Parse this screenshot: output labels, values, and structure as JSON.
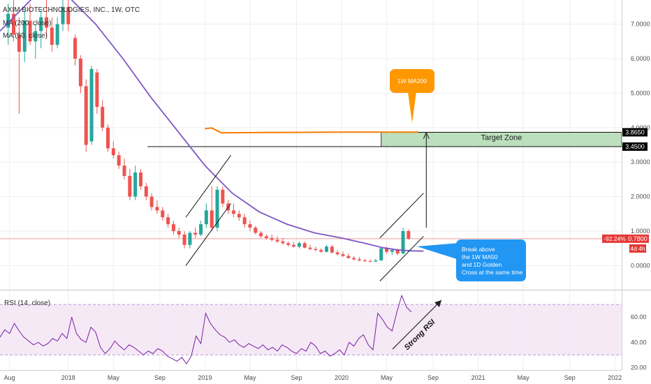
{
  "chart_data": {
    "type": "candlestick",
    "header": {
      "symbol_line": "AXIM BIOTECHNOLOGIES, INC., 1W, OTC",
      "ma200_label": "MA (200, close)",
      "ma50_label": "MA (50, close)"
    },
    "price_axis": {
      "ticks": [
        0.0,
        1.0,
        2.0,
        3.0,
        4.0,
        5.0,
        6.0,
        7.0
      ],
      "tick_labels": [
        "0.0000",
        "1.0000",
        "2.0000",
        "3.0000",
        "4.0000",
        "5.0000",
        "6.0000",
        "7.0000"
      ],
      "ylim": [
        -0.7,
        7.7
      ]
    },
    "time_axis": {
      "labels": [
        "Aug",
        "2018",
        "May",
        "Sep",
        "2019",
        "May",
        "Sep",
        "2020",
        "May",
        "Sep",
        "2021",
        "May",
        "Sep",
        "2022"
      ],
      "xlim": [
        2017.5,
        2022.05
      ]
    },
    "markers": {
      "last_price": {
        "label": "0.7800",
        "value": 0.78,
        "pct_label": "-92.24%",
        "countdown": "4d 4h"
      },
      "target_top": {
        "label": "3.8650",
        "value": 3.865
      },
      "target_bottom": {
        "label": "3.4500",
        "value": 3.45
      }
    },
    "target_zone": {
      "label": "Target Zone",
      "low": 3.45,
      "high": 3.865,
      "x_start": 2020.29,
      "x_end": 2022.05
    },
    "ma200_line": {
      "label": "1W MA200",
      "x": [
        2019.0,
        2019.05,
        2019.12,
        2019.5,
        2020.0,
        2020.5,
        2020.56
      ],
      "y": [
        3.97,
        3.99,
        3.85,
        3.86,
        3.87,
        3.87,
        3.87
      ]
    },
    "ma50_line": {
      "x": [
        2017.5,
        2017.8,
        2018.0,
        2018.2,
        2018.4,
        2018.6,
        2018.8,
        2019.0,
        2019.2,
        2019.4,
        2019.6,
        2019.8,
        2020.0,
        2020.2,
        2020.3,
        2020.4,
        2020.5,
        2020.6
      ],
      "y": [
        6.8,
        8.0,
        7.8,
        7.0,
        6.0,
        4.9,
        3.9,
        2.9,
        2.1,
        1.55,
        1.2,
        0.95,
        0.8,
        0.62,
        0.52,
        0.46,
        0.43,
        0.42
      ]
    },
    "candles": [
      {
        "x": 2017.56,
        "o": 6.9,
        "h": 7.6,
        "l": 6.4,
        "c": 7.3
      },
      {
        "x": 2017.6,
        "o": 7.3,
        "h": 7.8,
        "l": 6.5,
        "c": 6.7
      },
      {
        "x": 2017.64,
        "o": 6.7,
        "h": 7.2,
        "l": 4.4,
        "c": 6.2
      },
      {
        "x": 2017.68,
        "o": 6.2,
        "h": 7.4,
        "l": 5.9,
        "c": 7.1
      },
      {
        "x": 2017.72,
        "o": 7.1,
        "h": 7.6,
        "l": 6.4,
        "c": 6.5
      },
      {
        "x": 2017.76,
        "o": 6.5,
        "h": 7.0,
        "l": 6.0,
        "c": 6.8
      },
      {
        "x": 2017.8,
        "o": 6.8,
        "h": 7.4,
        "l": 6.3,
        "c": 7.2
      },
      {
        "x": 2017.84,
        "o": 7.2,
        "h": 7.7,
        "l": 6.6,
        "c": 6.9
      },
      {
        "x": 2017.88,
        "o": 6.9,
        "h": 7.2,
        "l": 6.2,
        "c": 6.4
      },
      {
        "x": 2017.92,
        "o": 6.4,
        "h": 7.2,
        "l": 6.3,
        "c": 7.0
      },
      {
        "x": 2017.96,
        "o": 7.0,
        "h": 7.7,
        "l": 6.8,
        "c": 7.5
      },
      {
        "x": 2018.0,
        "o": 7.5,
        "h": 7.8,
        "l": 6.8,
        "c": 7.0
      },
      {
        "x": 2018.05,
        "o": 6.6,
        "h": 6.7,
        "l": 5.8,
        "c": 6.0
      },
      {
        "x": 2018.09,
        "o": 6.0,
        "h": 6.1,
        "l": 5.0,
        "c": 5.2
      },
      {
        "x": 2018.13,
        "o": 5.2,
        "h": 5.4,
        "l": 3.3,
        "c": 3.5
      },
      {
        "x": 2018.17,
        "o": 3.6,
        "h": 5.8,
        "l": 3.5,
        "c": 5.7
      },
      {
        "x": 2018.21,
        "o": 5.6,
        "h": 5.7,
        "l": 4.4,
        "c": 4.6
      },
      {
        "x": 2018.25,
        "o": 4.6,
        "h": 4.8,
        "l": 3.9,
        "c": 4.0
      },
      {
        "x": 2018.29,
        "o": 4.0,
        "h": 4.1,
        "l": 3.3,
        "c": 3.4
      },
      {
        "x": 2018.33,
        "o": 3.4,
        "h": 3.6,
        "l": 3.1,
        "c": 3.2
      },
      {
        "x": 2018.37,
        "o": 3.2,
        "h": 3.3,
        "l": 2.8,
        "c": 2.9
      },
      {
        "x": 2018.41,
        "o": 2.9,
        "h": 3.1,
        "l": 2.5,
        "c": 2.6
      },
      {
        "x": 2018.45,
        "o": 2.6,
        "h": 2.8,
        "l": 1.9,
        "c": 2.0
      },
      {
        "x": 2018.49,
        "o": 2.0,
        "h": 2.9,
        "l": 1.9,
        "c": 2.7
      },
      {
        "x": 2018.53,
        "o": 2.7,
        "h": 2.8,
        "l": 2.2,
        "c": 2.3
      },
      {
        "x": 2018.57,
        "o": 2.3,
        "h": 2.4,
        "l": 1.9,
        "c": 2.0
      },
      {
        "x": 2018.61,
        "o": 2.0,
        "h": 2.1,
        "l": 1.6,
        "c": 1.7
      },
      {
        "x": 2018.65,
        "o": 1.7,
        "h": 1.9,
        "l": 1.5,
        "c": 1.6
      },
      {
        "x": 2018.69,
        "o": 1.6,
        "h": 1.7,
        "l": 1.3,
        "c": 1.4
      },
      {
        "x": 2018.73,
        "o": 1.4,
        "h": 1.5,
        "l": 1.1,
        "c": 1.2
      },
      {
        "x": 2018.77,
        "o": 1.2,
        "h": 1.3,
        "l": 0.9,
        "c": 1.0
      },
      {
        "x": 2018.81,
        "o": 1.0,
        "h": 1.1,
        "l": 0.8,
        "c": 0.9
      },
      {
        "x": 2018.85,
        "o": 0.9,
        "h": 1.0,
        "l": 0.5,
        "c": 0.6
      },
      {
        "x": 2018.89,
        "o": 0.6,
        "h": 1.0,
        "l": 0.5,
        "c": 0.95
      },
      {
        "x": 2018.93,
        "o": 0.95,
        "h": 1.1,
        "l": 0.8,
        "c": 0.9
      },
      {
        "x": 2018.97,
        "o": 0.9,
        "h": 1.3,
        "l": 0.85,
        "c": 1.2
      },
      {
        "x": 2019.01,
        "o": 1.2,
        "h": 1.8,
        "l": 1.1,
        "c": 1.6
      },
      {
        "x": 2019.05,
        "o": 1.6,
        "h": 2.3,
        "l": 1.0,
        "c": 1.1
      },
      {
        "x": 2019.09,
        "o": 1.1,
        "h": 2.3,
        "l": 1.0,
        "c": 2.2
      },
      {
        "x": 2019.13,
        "o": 2.2,
        "h": 2.3,
        "l": 1.7,
        "c": 1.8
      },
      {
        "x": 2019.17,
        "o": 1.8,
        "h": 1.9,
        "l": 1.5,
        "c": 1.6
      },
      {
        "x": 2019.21,
        "o": 1.6,
        "h": 1.8,
        "l": 1.4,
        "c": 1.5
      },
      {
        "x": 2019.25,
        "o": 1.5,
        "h": 1.6,
        "l": 1.3,
        "c": 1.4
      },
      {
        "x": 2019.29,
        "o": 1.4,
        "h": 1.5,
        "l": 1.1,
        "c": 1.2
      },
      {
        "x": 2019.33,
        "o": 1.2,
        "h": 1.3,
        "l": 1.0,
        "c": 1.1
      },
      {
        "x": 2019.37,
        "o": 1.1,
        "h": 1.15,
        "l": 0.9,
        "c": 0.95
      },
      {
        "x": 2019.41,
        "o": 0.95,
        "h": 1.0,
        "l": 0.8,
        "c": 0.85
      },
      {
        "x": 2019.45,
        "o": 0.85,
        "h": 0.9,
        "l": 0.75,
        "c": 0.8
      },
      {
        "x": 2019.49,
        "o": 0.8,
        "h": 0.9,
        "l": 0.7,
        "c": 0.75
      },
      {
        "x": 2019.53,
        "o": 0.75,
        "h": 0.85,
        "l": 0.65,
        "c": 0.7
      },
      {
        "x": 2019.57,
        "o": 0.7,
        "h": 0.8,
        "l": 0.6,
        "c": 0.65
      },
      {
        "x": 2019.61,
        "o": 0.65,
        "h": 0.7,
        "l": 0.55,
        "c": 0.6
      },
      {
        "x": 2019.65,
        "o": 0.6,
        "h": 0.68,
        "l": 0.52,
        "c": 0.55
      },
      {
        "x": 2019.69,
        "o": 0.55,
        "h": 0.7,
        "l": 0.5,
        "c": 0.65
      },
      {
        "x": 2019.73,
        "o": 0.65,
        "h": 0.7,
        "l": 0.5,
        "c": 0.52
      },
      {
        "x": 2019.77,
        "o": 0.52,
        "h": 0.6,
        "l": 0.45,
        "c": 0.48
      },
      {
        "x": 2019.81,
        "o": 0.48,
        "h": 0.55,
        "l": 0.42,
        "c": 0.45
      },
      {
        "x": 2019.85,
        "o": 0.45,
        "h": 0.5,
        "l": 0.38,
        "c": 0.4
      },
      {
        "x": 2019.89,
        "o": 0.4,
        "h": 0.6,
        "l": 0.38,
        "c": 0.55
      },
      {
        "x": 2019.93,
        "o": 0.55,
        "h": 0.6,
        "l": 0.35,
        "c": 0.38
      },
      {
        "x": 2019.97,
        "o": 0.38,
        "h": 0.45,
        "l": 0.3,
        "c": 0.33
      },
      {
        "x": 2020.01,
        "o": 0.33,
        "h": 0.4,
        "l": 0.25,
        "c": 0.28
      },
      {
        "x": 2020.05,
        "o": 0.28,
        "h": 0.35,
        "l": 0.2,
        "c": 0.22
      },
      {
        "x": 2020.09,
        "o": 0.22,
        "h": 0.28,
        "l": 0.15,
        "c": 0.18
      },
      {
        "x": 2020.13,
        "o": 0.18,
        "h": 0.25,
        "l": 0.12,
        "c": 0.15
      },
      {
        "x": 2020.17,
        "o": 0.15,
        "h": 0.2,
        "l": 0.1,
        "c": 0.13
      },
      {
        "x": 2020.21,
        "o": 0.13,
        "h": 0.18,
        "l": 0.1,
        "c": 0.12
      },
      {
        "x": 2020.25,
        "o": 0.12,
        "h": 0.2,
        "l": 0.1,
        "c": 0.15
      },
      {
        "x": 2020.29,
        "o": 0.15,
        "h": 0.55,
        "l": 0.14,
        "c": 0.5
      },
      {
        "x": 2020.33,
        "o": 0.5,
        "h": 0.55,
        "l": 0.35,
        "c": 0.4
      },
      {
        "x": 2020.37,
        "o": 0.4,
        "h": 0.5,
        "l": 0.3,
        "c": 0.45
      },
      {
        "x": 2020.41,
        "o": 0.45,
        "h": 0.5,
        "l": 0.3,
        "c": 0.35
      },
      {
        "x": 2020.45,
        "o": 0.35,
        "h": 1.1,
        "l": 0.33,
        "c": 1.0
      },
      {
        "x": 2020.49,
        "o": 1.0,
        "h": 1.05,
        "l": 0.75,
        "c": 0.78
      }
    ]
  },
  "rsi": {
    "label": "RSI (14, close)",
    "ticks": [
      20.0,
      40.0,
      60.0
    ],
    "tick_labels": [
      "20.00",
      "40.00",
      "60.00"
    ],
    "band": [
      30,
      70
    ],
    "ylim": [
      18,
      80
    ],
    "values": [
      44,
      50,
      47,
      55,
      49,
      44,
      41,
      38,
      40,
      37,
      39,
      43,
      41,
      47,
      43,
      60,
      47,
      42,
      40,
      52,
      48,
      36,
      31,
      35,
      41,
      37,
      34,
      38,
      36,
      33,
      30,
      33,
      31,
      35,
      33,
      29,
      27,
      25,
      28,
      23,
      29,
      45,
      39,
      63,
      55,
      50,
      46,
      44,
      40,
      42,
      38,
      36,
      39,
      37,
      35,
      38,
      34,
      36,
      33,
      38,
      36,
      33,
      31,
      35,
      33,
      40,
      37,
      31,
      33,
      29,
      31,
      34,
      30,
      40,
      37,
      43,
      46,
      38,
      34,
      63,
      58,
      52,
      49,
      64,
      77,
      68,
      64
    ],
    "arrow_label": "Strong RSI"
  },
  "annotations": {
    "callout_orange": "1W MA200",
    "callout_blue_lines": [
      "Break above",
      "the 1W MA50",
      "and 1D Golden",
      "Cross at the same time"
    ]
  },
  "colors": {
    "up": "#26a69a",
    "down": "#ef5350",
    "ma50": "#7e57c2",
    "ma200": "#f57c00",
    "target_zone": "#a5d6a7",
    "rsi_line": "#7b1fa2",
    "rsi_band": "#f3e5f5",
    "callout_blue": "#2196f3",
    "callout_orange": "#ff9800",
    "price_label": "#e53935"
  }
}
